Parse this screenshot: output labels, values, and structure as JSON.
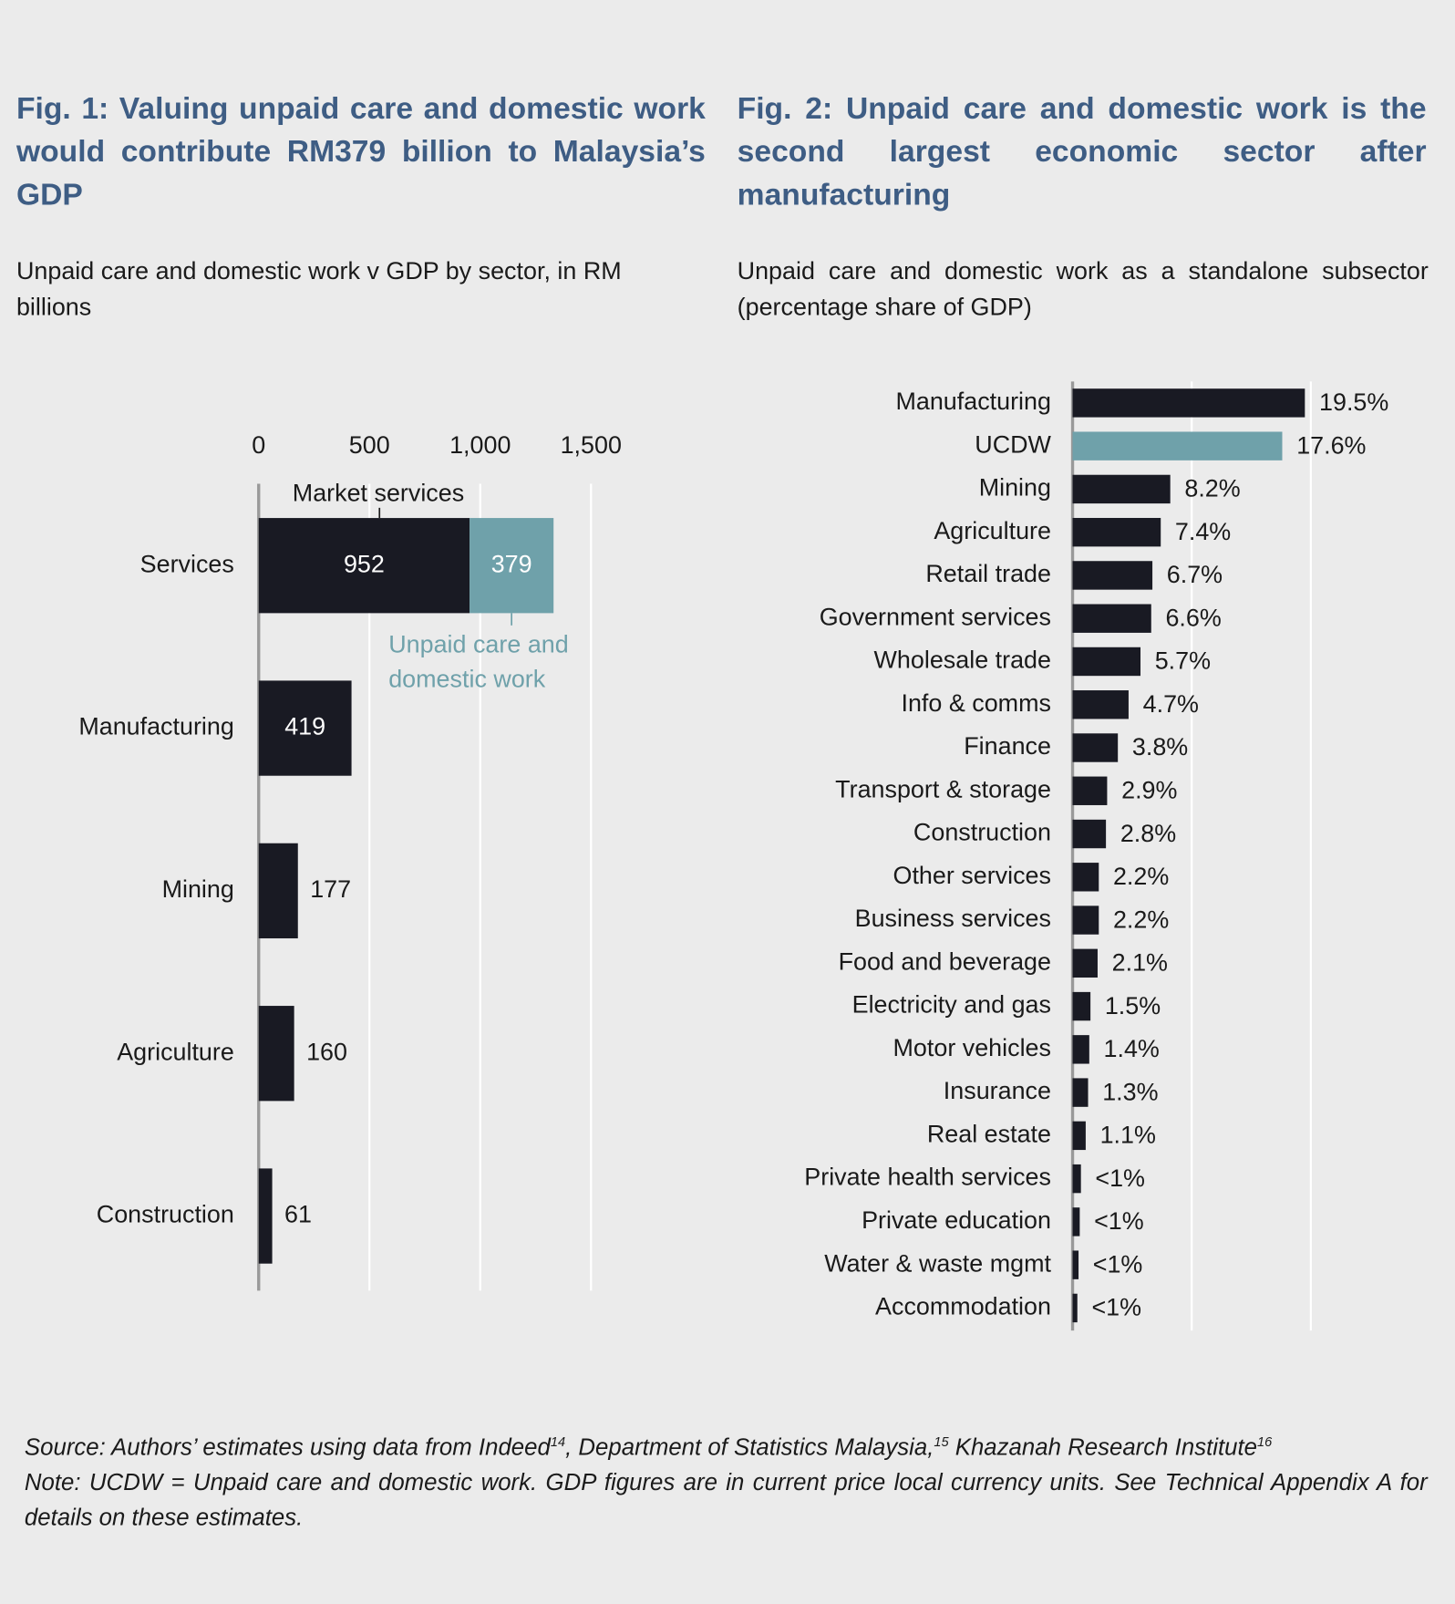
{
  "chart_data": [
    {
      "type": "bar",
      "orientation": "horizontal",
      "stacked": true,
      "title": "Fig. 1: Valuing unpaid care and domestic work would contribute RM379 billion to Malaysia’s GDP",
      "subtitle": "Unpaid care and domestic work v GDP by sector, in RM billions",
      "categories": [
        "Services",
        "Manufacturing",
        "Mining",
        "Agriculture",
        "Construction"
      ],
      "series": [
        {
          "name": "Market services",
          "color": "#191a23",
          "values": [
            952,
            419,
            177,
            160,
            61
          ]
        },
        {
          "name": "Unpaid care and domestic work",
          "color": "#6fa1aa",
          "values": [
            379,
            null,
            null,
            null,
            null
          ]
        }
      ],
      "xlim": [
        0,
        1500
      ],
      "xticks": [
        0,
        500,
        {
          "value": 1000,
          "label": "1,000"
        },
        {
          "value": 1500,
          "label": "1,500"
        }
      ],
      "grid": true
    },
    {
      "type": "bar",
      "orientation": "horizontal",
      "title": "Fig. 2: Unpaid care and domestic work is the second largest economic sector after manufacturing",
      "subtitle": "Unpaid care and domestic work as a standalone subsector (percentage share of GDP)",
      "categories": [
        "Manufacturing",
        "UCDW",
        "Mining",
        "Agriculture",
        "Retail trade",
        "Government services",
        "Wholesale trade",
        "Info & comms",
        "Finance",
        "Transport & storage",
        "Construction",
        "Other services",
        "Business services",
        "Food and  beverage",
        "Electricity and gas",
        "Motor vehicles",
        "Insurance",
        "Real estate",
        "Private health services",
        "Private education",
        "Water & waste mgmt",
        "Accommodation"
      ],
      "values": [
        19.5,
        17.6,
        8.2,
        7.4,
        6.7,
        6.6,
        5.7,
        4.7,
        3.8,
        2.9,
        2.8,
        2.2,
        2.2,
        2.1,
        1.5,
        1.4,
        1.3,
        1.1,
        0.7,
        0.6,
        0.5,
        0.4
      ],
      "value_labels": [
        "19.5%",
        "17.6%",
        "8.2%",
        "7.4%",
        "6.7%",
        "6.6%",
        "5.7%",
        "4.7%",
        "3.8%",
        "2.9%",
        "2.8%",
        "2.2%",
        "2.2%",
        "2.1%",
        "1.5%",
        "1.4%",
        "1.3%",
        "1.1%",
        "<1%",
        "<1%",
        "<1%",
        "<1%"
      ],
      "colors": [
        "#191a23",
        "#6fa1aa",
        "#191a23",
        "#191a23",
        "#191a23",
        "#191a23",
        "#191a23",
        "#191a23",
        "#191a23",
        "#191a23",
        "#191a23",
        "#191a23",
        "#191a23",
        "#191a23",
        "#191a23",
        "#191a23",
        "#191a23",
        "#191a23",
        "#191a23",
        "#191a23",
        "#191a23",
        "#191a23"
      ],
      "xlim": [
        0,
        21
      ],
      "xticks": [
        10,
        20
      ],
      "tick_labels": false,
      "grid": true
    }
  ],
  "notes": {
    "source": [
      "Source: Authors’ estimates using data from Indeed",
      "14",
      ", Department of Statistics Malaysia,",
      "15",
      " Khazanah Research Institute",
      "16"
    ],
    "note": "Note: UCDW = Unpaid care and domestic work. GDP figures are in current price local currency units. See Technical Appendix A for details on these estimates."
  }
}
